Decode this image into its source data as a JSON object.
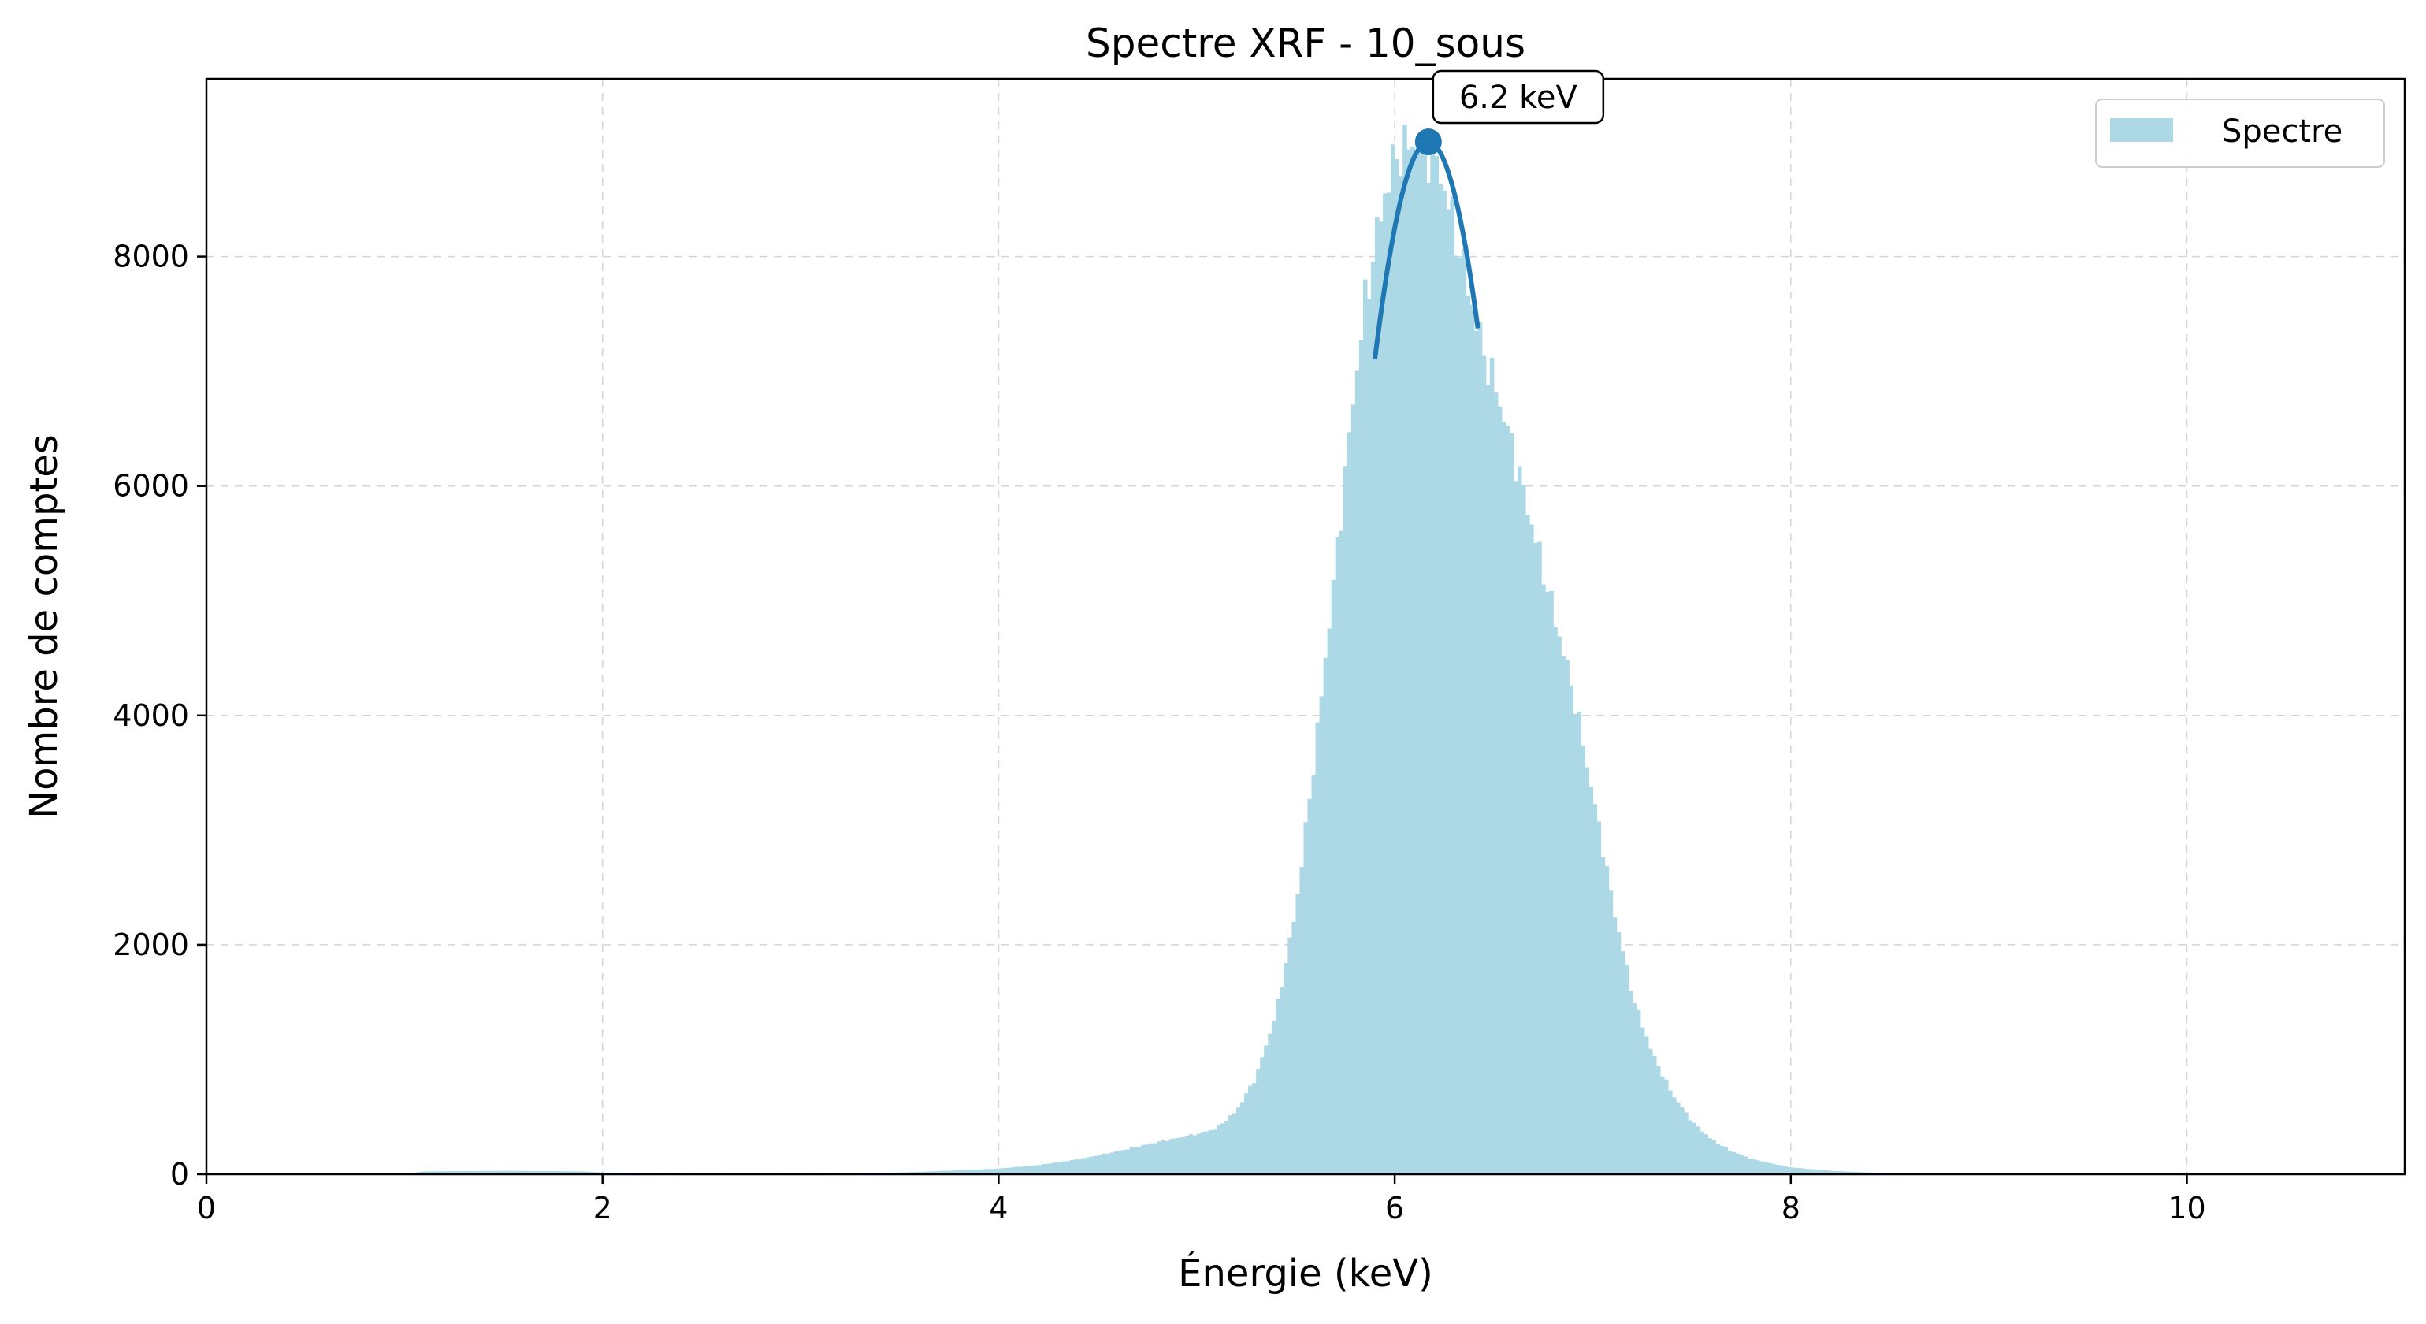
{
  "chart_data": {
    "type": "area",
    "title": "Spectre XRF - 10_sous",
    "xlabel": "Énergie (keV)",
    "ylabel": "Nombre de comptes",
    "xlim": [
      0,
      11.1
    ],
    "ylim": [
      0,
      9550
    ],
    "xticks": [
      0,
      2,
      4,
      6,
      8,
      10
    ],
    "yticks": [
      0,
      2000,
      4000,
      6000,
      8000
    ],
    "grid": true,
    "legend": {
      "entries": [
        "Spectre"
      ],
      "placement": "top-right"
    },
    "colors": {
      "spectrum_fill": "#add8e6",
      "fit_line": "#1f77b4",
      "peak_marker": "#1f77b4"
    },
    "series": [
      {
        "name": "Spectre",
        "x": [
          0.0,
          0.5,
          1.0,
          1.1,
          1.5,
          1.9,
          2.0,
          2.5,
          3.0,
          3.5,
          3.8,
          4.0,
          4.2,
          4.4,
          4.6,
          4.8,
          5.0,
          5.1,
          5.2,
          5.3,
          5.4,
          5.5,
          5.6,
          5.7,
          5.8,
          5.85,
          5.9,
          5.95,
          6.0,
          6.05,
          6.1,
          6.15,
          6.2,
          6.25,
          6.3,
          6.35,
          6.4,
          6.45,
          6.5,
          6.55,
          6.6,
          6.65,
          6.7,
          6.75,
          6.8,
          6.85,
          6.9,
          6.95,
          7.0,
          7.05,
          7.1,
          7.15,
          7.2,
          7.3,
          7.4,
          7.5,
          7.6,
          7.7,
          7.8,
          7.9,
          8.0,
          8.2,
          8.4,
          8.6,
          8.8,
          9.0,
          9.5,
          10.0,
          10.5,
          11.1
        ],
        "values": [
          0,
          5,
          5,
          25,
          30,
          25,
          15,
          8,
          8,
          15,
          35,
          50,
          80,
          130,
          200,
          280,
          350,
          400,
          550,
          850,
          1400,
          2300,
          3700,
          5300,
          6900,
          7600,
          8100,
          8550,
          8850,
          8950,
          8980,
          8950,
          8850,
          8600,
          8250,
          7900,
          7500,
          7150,
          6900,
          6600,
          6300,
          5950,
          5600,
          5250,
          4900,
          4550,
          4200,
          3750,
          3300,
          2850,
          2350,
          1950,
          1550,
          1050,
          700,
          460,
          300,
          200,
          135,
          95,
          60,
          30,
          15,
          8,
          5,
          3,
          1,
          0,
          0,
          0
        ]
      }
    ],
    "fit_curve": {
      "x_range": [
        5.9,
        6.42
      ],
      "peak_x": 6.17,
      "peak_y": 9000,
      "curvature": 26000
    },
    "annotations": [
      {
        "label": "6.2 keV",
        "x": 6.17,
        "y": 9000
      }
    ]
  }
}
